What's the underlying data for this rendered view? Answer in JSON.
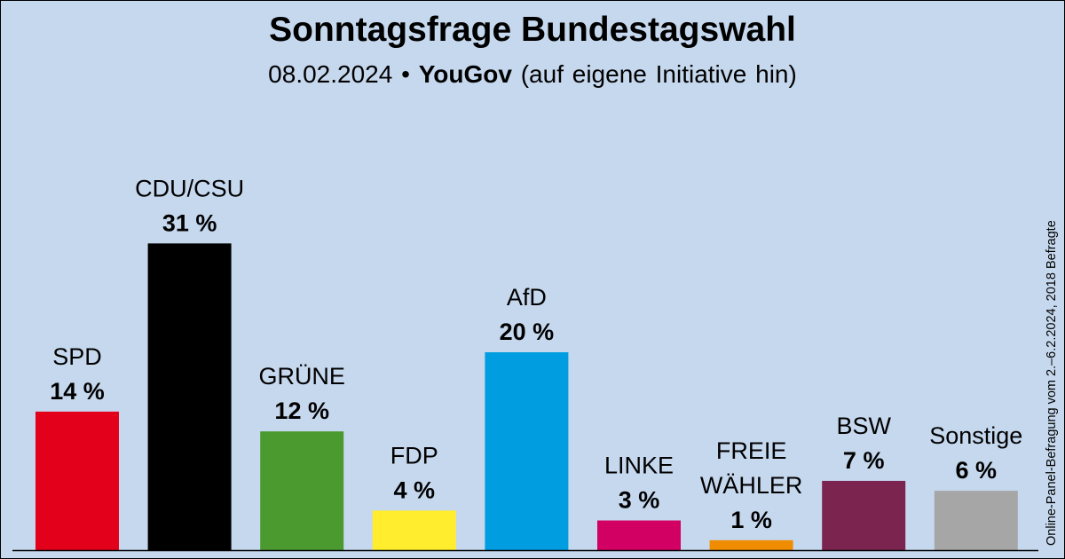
{
  "header": {
    "title": "Sonntagsfrage Bundestagswahl",
    "date": "08.02.2024",
    "separator": "•",
    "institute": "YouGov",
    "note": "(auf eigene Initiative hin)"
  },
  "side_note": "Online-Panel-Befragung vom 2.–6.2.2024, 2018 Befragte",
  "chart_data": {
    "type": "bar",
    "title": "Sonntagsfrage Bundestagswahl",
    "unit": "%",
    "ylim": [
      0,
      31
    ],
    "grid": false,
    "categories": [
      "SPD",
      "CDU/CSU",
      "GRÜNE",
      "FDP",
      "AfD",
      "LINKE",
      "FREIE WÄHLER",
      "BSW",
      "Sonstige"
    ],
    "label_lines": [
      [
        "SPD"
      ],
      [
        "CDU/CSU"
      ],
      [
        "GRÜNE"
      ],
      [
        "FDP"
      ],
      [
        "AfD"
      ],
      [
        "LINKE"
      ],
      [
        "FREIE",
        "WÄHLER"
      ],
      [
        "BSW"
      ],
      [
        "Sonstige"
      ]
    ],
    "values": [
      14,
      31,
      12,
      4,
      20,
      3,
      1,
      7,
      6
    ],
    "value_labels": [
      "14 %",
      "31 %",
      "12 %",
      "4 %",
      "20 %",
      "3 %",
      "1 %",
      "7 %",
      "6 %"
    ],
    "colors": [
      "#e3001b",
      "#000000",
      "#4a9a2f",
      "#ffed2e",
      "#009ee0",
      "#d20063",
      "#f08c00",
      "#7b2450",
      "#a6a6a6"
    ]
  }
}
